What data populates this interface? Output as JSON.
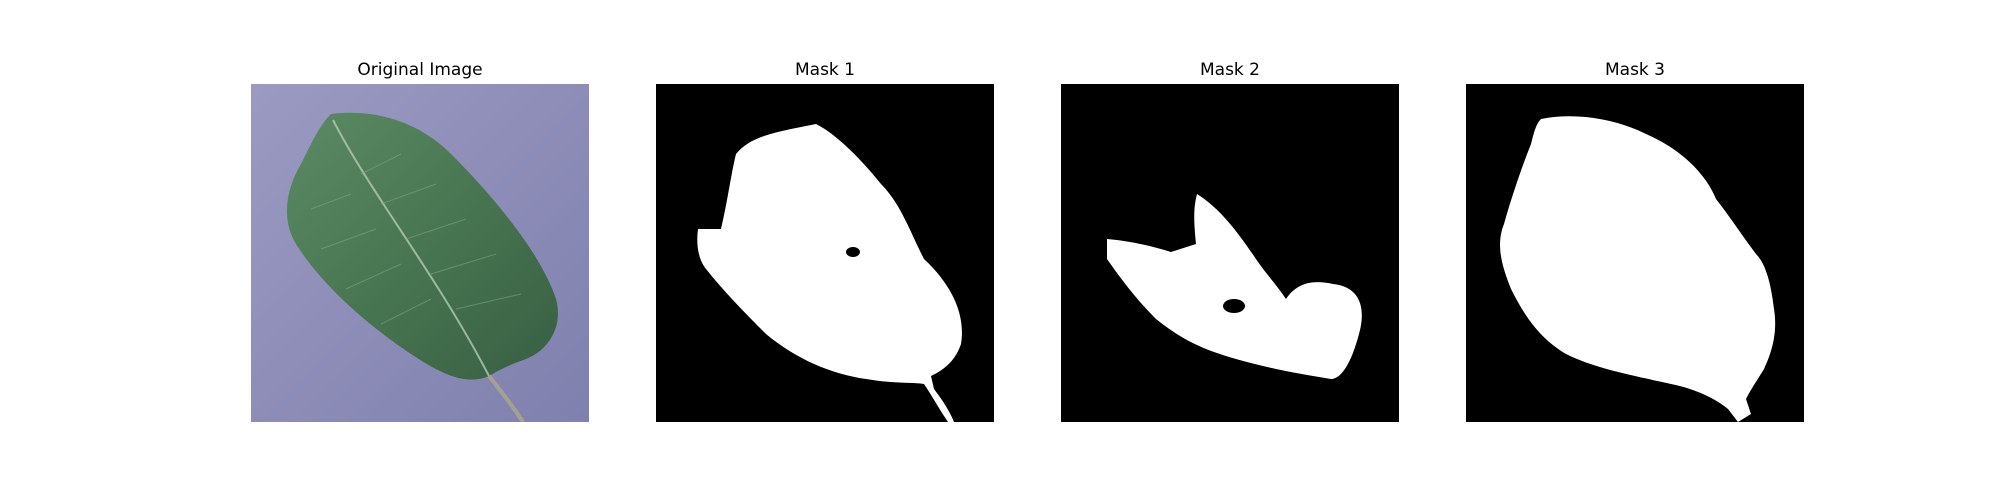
{
  "figure": {
    "panels": [
      {
        "title": "Original Image",
        "kind": "photo",
        "description": ""
      },
      {
        "title": "Mask 1",
        "kind": "mask"
      },
      {
        "title": "Mask 2",
        "kind": "mask"
      },
      {
        "title": "Mask 3",
        "kind": "mask"
      }
    ],
    "colors": {
      "background": "#ffffff",
      "mask_background": "#000000",
      "mask_foreground": "#ffffff",
      "leaf_dark": "#3f6b4c",
      "leaf_mid": "#5a8a63",
      "photo_background": "#8f8fb8"
    }
  }
}
